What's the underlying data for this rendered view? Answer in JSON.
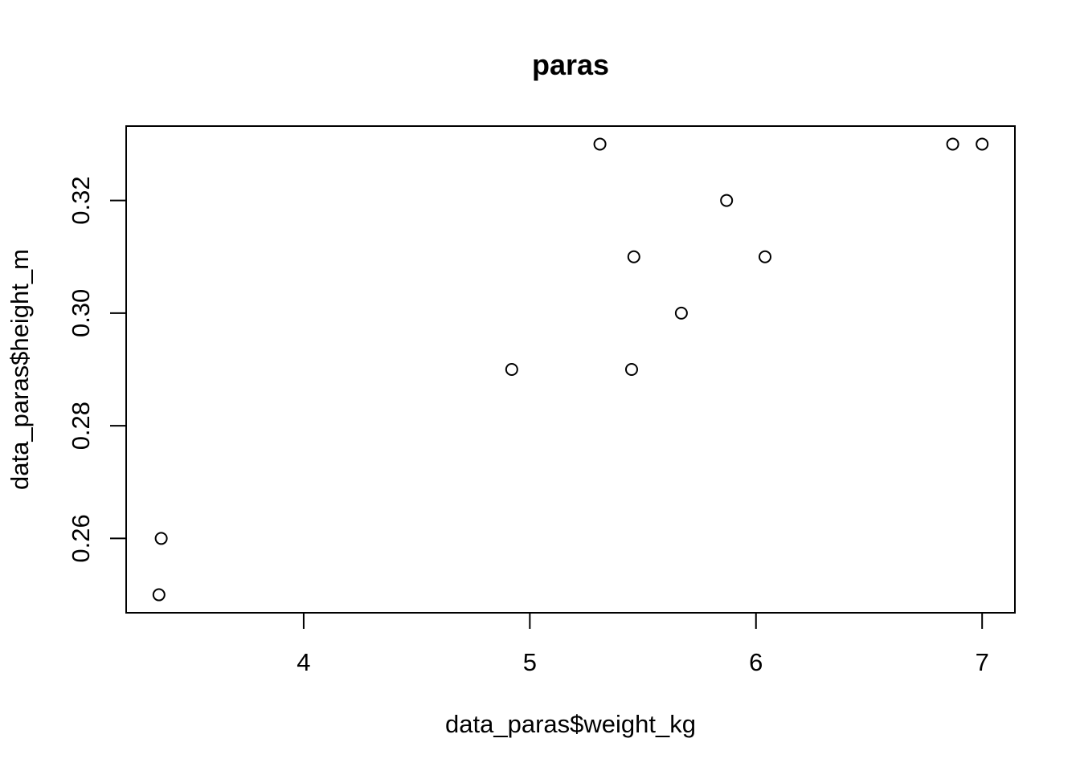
{
  "chart_data": {
    "type": "scatter",
    "title": "paras",
    "xlabel": "data_paras$weight_kg",
    "ylabel": "data_paras$height_m",
    "xlim": [
      3.215,
      7.145
    ],
    "ylim": [
      0.2468,
      0.3332
    ],
    "x_ticks": [
      4,
      5,
      6,
      7
    ],
    "x_tick_labels": [
      "4",
      "5",
      "6",
      "7"
    ],
    "y_ticks": [
      0.26,
      0.28,
      0.3,
      0.32
    ],
    "y_tick_labels": [
      "0.26",
      "0.28",
      "0.30",
      "0.32"
    ],
    "grid": false,
    "points": [
      {
        "x": 3.36,
        "y": 0.25
      },
      {
        "x": 3.37,
        "y": 0.26
      },
      {
        "x": 4.92,
        "y": 0.29
      },
      {
        "x": 5.31,
        "y": 0.33
      },
      {
        "x": 5.45,
        "y": 0.29
      },
      {
        "x": 5.46,
        "y": 0.31
      },
      {
        "x": 5.67,
        "y": 0.3
      },
      {
        "x": 5.87,
        "y": 0.32
      },
      {
        "x": 6.04,
        "y": 0.31
      },
      {
        "x": 6.87,
        "y": 0.33
      },
      {
        "x": 7.0,
        "y": 0.33
      }
    ]
  }
}
